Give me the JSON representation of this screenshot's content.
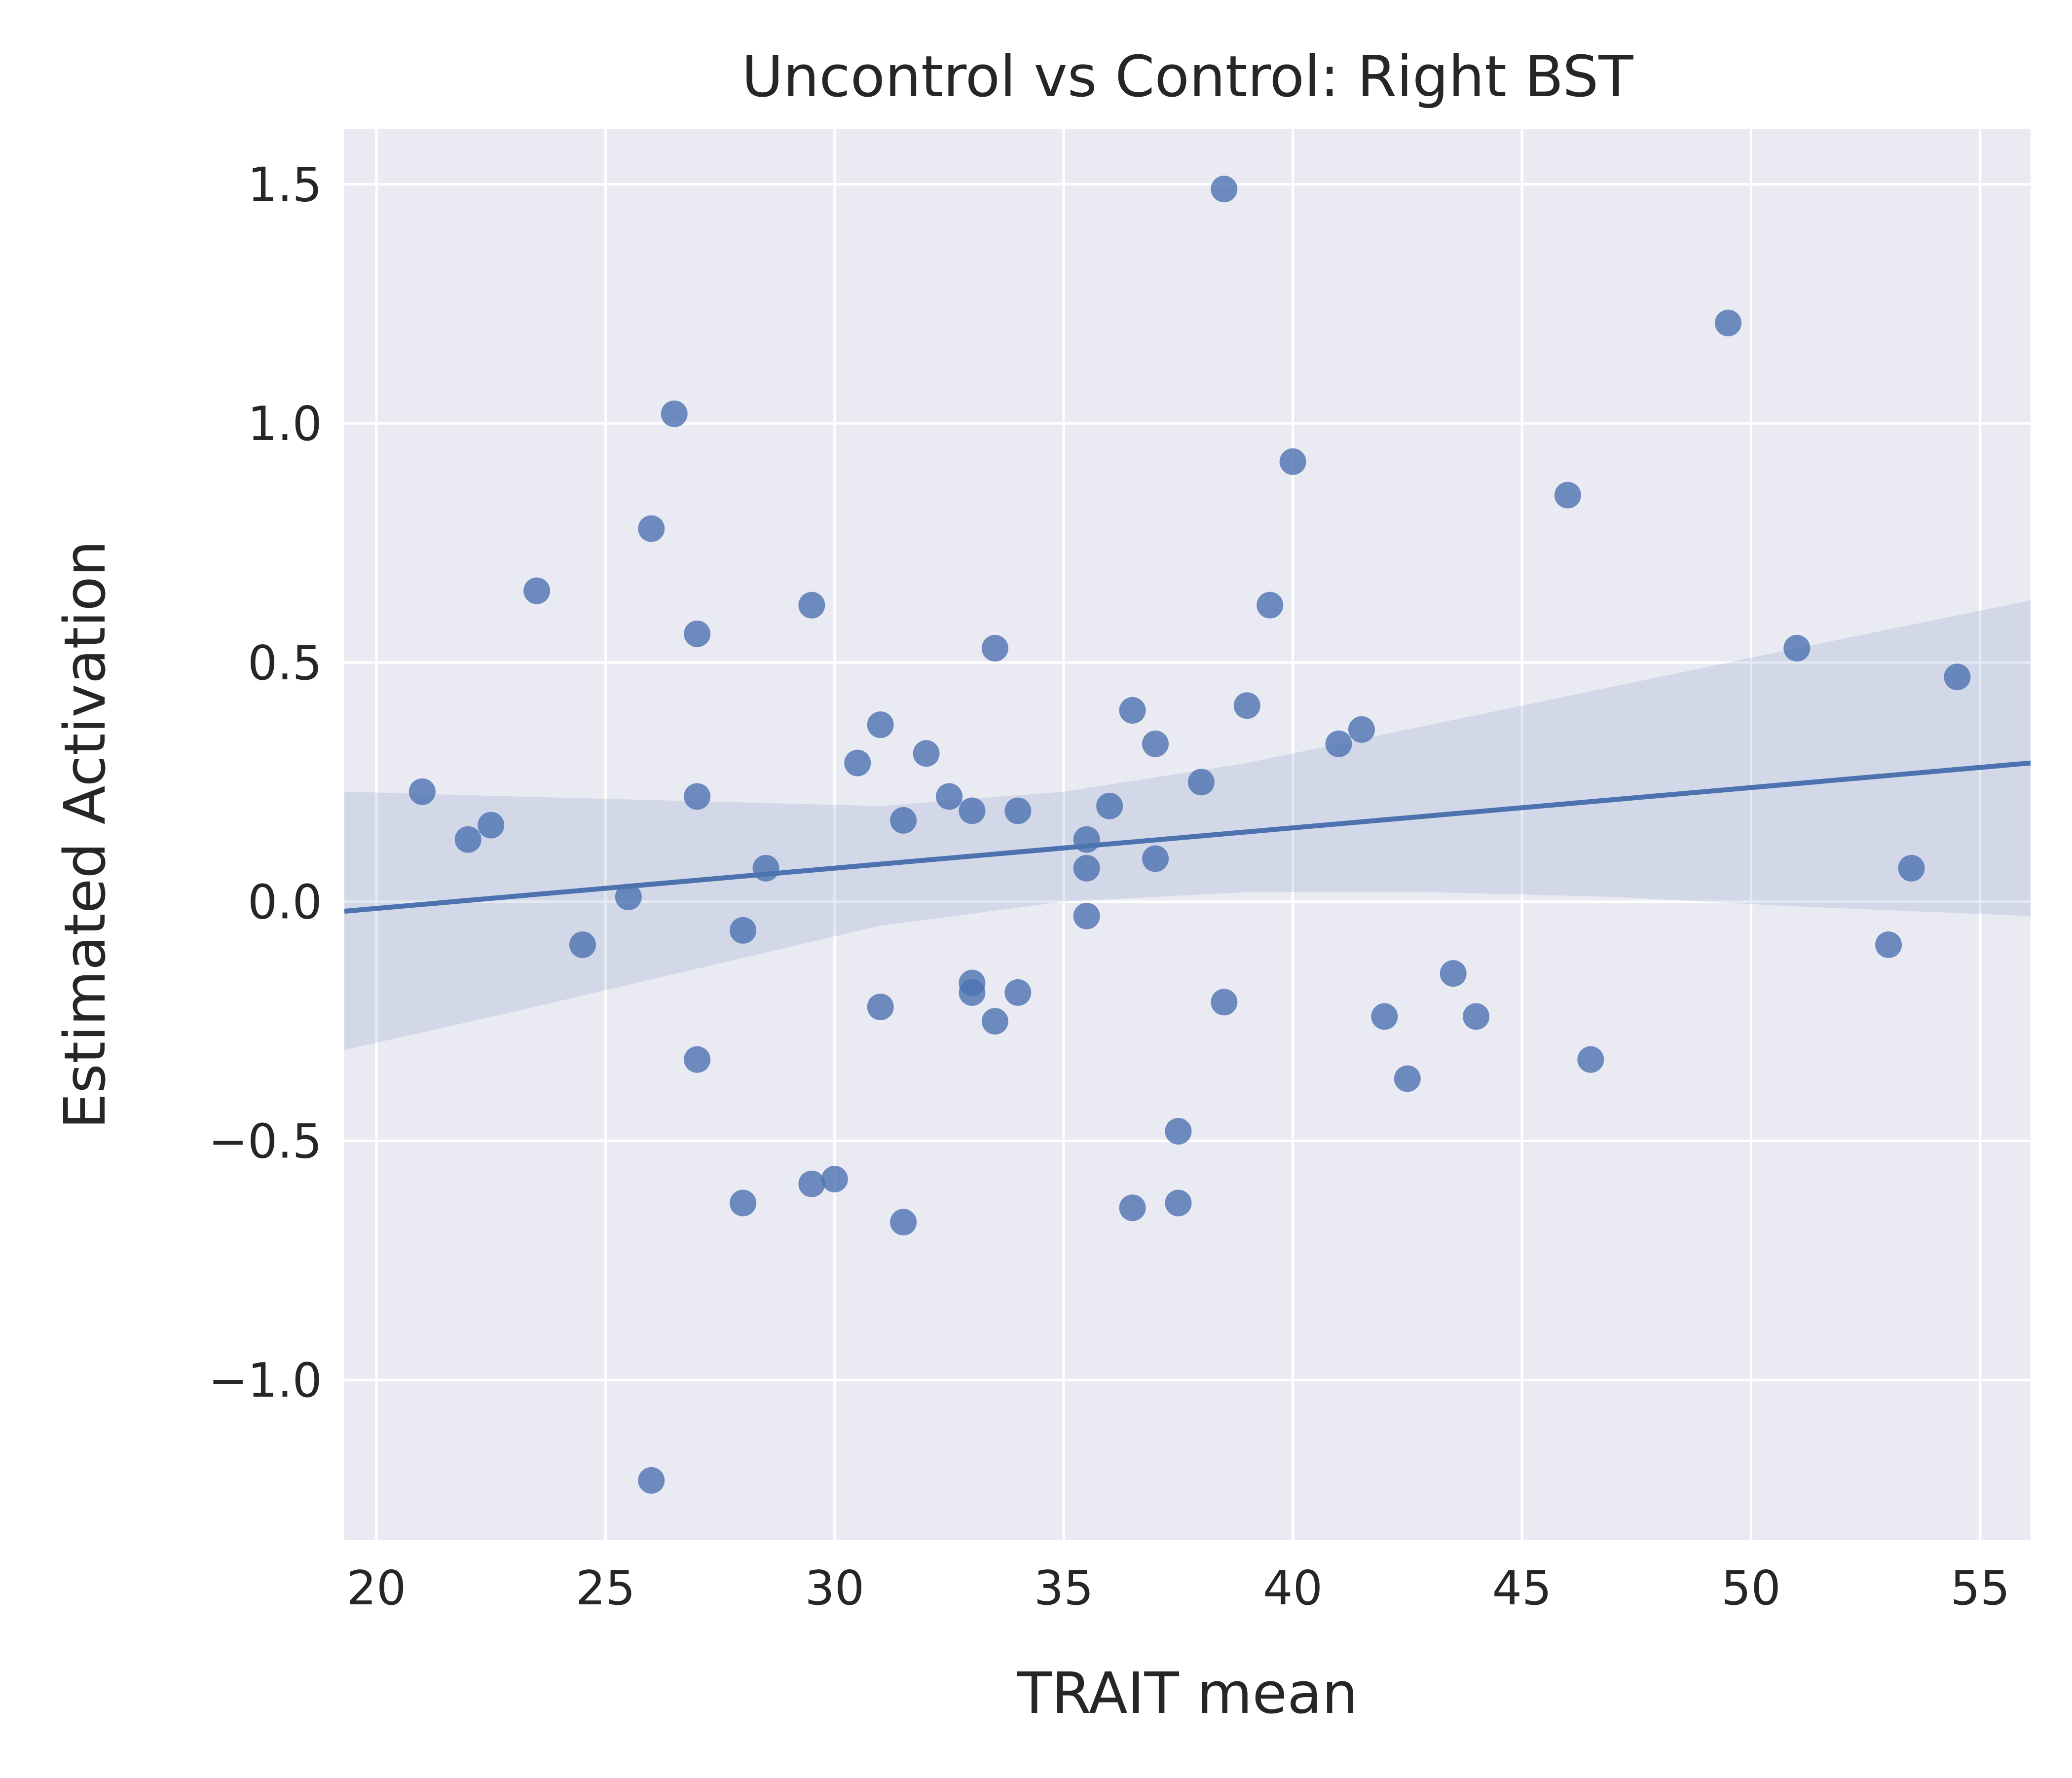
{
  "chart_data": {
    "type": "scatter",
    "title": "Uncontrol vs Control: Right BST",
    "xlabel": "TRAIT mean",
    "ylabel": "Estimated Activation",
    "xlim": [
      19.3,
      56.1
    ],
    "ylim": [
      -1.335,
      1.615
    ],
    "xticks": [
      20,
      25,
      30,
      35,
      40,
      45,
      50,
      55
    ],
    "xtick_labels": [
      "20",
      "25",
      "30",
      "35",
      "40",
      "45",
      "50",
      "55"
    ],
    "yticks": [
      -1.0,
      -0.5,
      0.0,
      0.5,
      1.0,
      1.5
    ],
    "ytick_labels": [
      "−1.0",
      "−0.5",
      "0.0",
      "0.5",
      "1.0",
      "1.5"
    ],
    "grid": true,
    "colors": {
      "background": "#eaeaf2",
      "grid": "#ffffff",
      "points": "#4c72b0",
      "line": "#4c72b0",
      "band": "#4c72b0"
    },
    "points": [
      {
        "x": 21.0,
        "y": 0.23
      },
      {
        "x": 22.0,
        "y": 0.13
      },
      {
        "x": 22.5,
        "y": 0.16
      },
      {
        "x": 23.5,
        "y": 0.65
      },
      {
        "x": 24.5,
        "y": -0.09
      },
      {
        "x": 25.5,
        "y": 0.01
      },
      {
        "x": 26.0,
        "y": 0.78
      },
      {
        "x": 26.0,
        "y": -1.21
      },
      {
        "x": 26.5,
        "y": 1.02
      },
      {
        "x": 27.0,
        "y": 0.56
      },
      {
        "x": 27.0,
        "y": 0.22
      },
      {
        "x": 27.0,
        "y": -0.33
      },
      {
        "x": 28.0,
        "y": -0.06
      },
      {
        "x": 28.0,
        "y": -0.63
      },
      {
        "x": 28.5,
        "y": 0.07
      },
      {
        "x": 29.5,
        "y": 0.62
      },
      {
        "x": 29.5,
        "y": -0.59
      },
      {
        "x": 30.0,
        "y": -0.58
      },
      {
        "x": 30.5,
        "y": 0.29
      },
      {
        "x": 31.0,
        "y": 0.37
      },
      {
        "x": 31.0,
        "y": -0.22
      },
      {
        "x": 31.5,
        "y": 0.17
      },
      {
        "x": 31.5,
        "y": -0.67
      },
      {
        "x": 32.0,
        "y": 0.31
      },
      {
        "x": 32.5,
        "y": 0.22
      },
      {
        "x": 33.0,
        "y": 0.19
      },
      {
        "x": 33.0,
        "y": -0.17
      },
      {
        "x": 33.0,
        "y": -0.19
      },
      {
        "x": 33.5,
        "y": 0.53
      },
      {
        "x": 33.5,
        "y": -0.25
      },
      {
        "x": 34.0,
        "y": 0.19
      },
      {
        "x": 34.0,
        "y": -0.19
      },
      {
        "x": 35.5,
        "y": 0.13
      },
      {
        "x": 35.5,
        "y": 0.07
      },
      {
        "x": 35.5,
        "y": -0.03
      },
      {
        "x": 36.0,
        "y": 0.2
      },
      {
        "x": 36.5,
        "y": 0.4
      },
      {
        "x": 36.5,
        "y": -0.64
      },
      {
        "x": 37.0,
        "y": 0.33
      },
      {
        "x": 37.0,
        "y": 0.09
      },
      {
        "x": 37.5,
        "y": -0.48
      },
      {
        "x": 37.5,
        "y": -0.63
      },
      {
        "x": 38.0,
        "y": 0.25
      },
      {
        "x": 38.5,
        "y": 1.49
      },
      {
        "x": 38.5,
        "y": -0.21
      },
      {
        "x": 39.0,
        "y": 0.41
      },
      {
        "x": 39.5,
        "y": 0.62
      },
      {
        "x": 40.0,
        "y": 0.92
      },
      {
        "x": 41.0,
        "y": 0.33
      },
      {
        "x": 41.5,
        "y": 0.36
      },
      {
        "x": 42.0,
        "y": -0.24
      },
      {
        "x": 42.5,
        "y": -0.37
      },
      {
        "x": 43.5,
        "y": -0.15
      },
      {
        "x": 44.0,
        "y": -0.24
      },
      {
        "x": 46.0,
        "y": 0.85
      },
      {
        "x": 46.5,
        "y": -0.33
      },
      {
        "x": 49.5,
        "y": 1.21
      },
      {
        "x": 51.0,
        "y": 0.53
      },
      {
        "x": 53.0,
        "y": -0.09
      },
      {
        "x": 53.5,
        "y": 0.07
      },
      {
        "x": 54.5,
        "y": 0.47
      }
    ],
    "regression": {
      "line": [
        {
          "x": 19.3,
          "y": -0.02
        },
        {
          "x": 56.1,
          "y": 0.29
        }
      ],
      "ci_band": [
        {
          "x": 19.3,
          "lo": -0.31,
          "hi": 0.23
        },
        {
          "x": 23.0,
          "lo": -0.23,
          "hi": 0.22
        },
        {
          "x": 27.0,
          "lo": -0.14,
          "hi": 0.21
        },
        {
          "x": 31.0,
          "lo": -0.05,
          "hi": 0.2
        },
        {
          "x": 35.0,
          "lo": 0.0,
          "hi": 0.23
        },
        {
          "x": 39.0,
          "lo": 0.02,
          "hi": 0.29
        },
        {
          "x": 43.0,
          "lo": 0.02,
          "hi": 0.37
        },
        {
          "x": 47.0,
          "lo": 0.01,
          "hi": 0.45
        },
        {
          "x": 51.0,
          "lo": -0.01,
          "hi": 0.53
        },
        {
          "x": 56.1,
          "lo": -0.03,
          "hi": 0.63
        }
      ]
    }
  }
}
